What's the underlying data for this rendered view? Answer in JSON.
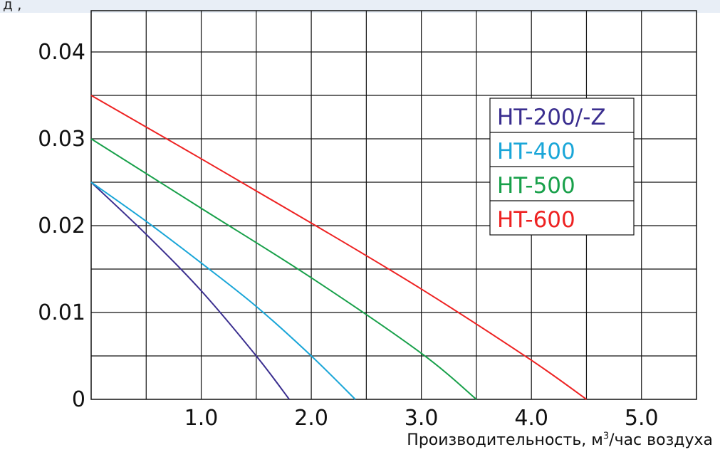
{
  "header": {
    "clipped_text": "д        , "
  },
  "chart_data": {
    "type": "line",
    "title": "",
    "xlabel_prefix": "Производительность, м",
    "xlabel_sup": "3",
    "xlabel_suffix": "/час воздуха",
    "ylabel": "",
    "xlim": [
      0,
      5.5
    ],
    "ylim": [
      0,
      0.04
    ],
    "x_tick_labels": [
      "1.0",
      "2.0",
      "3.0",
      "4.0",
      "5.0"
    ],
    "x_tick_values": [
      1.0,
      2.0,
      3.0,
      4.0,
      5.0
    ],
    "y_tick_labels": [
      "0",
      "0.01",
      "0.02",
      "0.03",
      "0.04"
    ],
    "y_tick_values": [
      0,
      0.01,
      0.02,
      0.03,
      0.04
    ],
    "grid": true,
    "legend_position": "right",
    "series": [
      {
        "name": "HT-200/-Z",
        "color": "#3a2e8f",
        "x": [
          0,
          0.5,
          1.0,
          1.5,
          1.8
        ],
        "y": [
          0.025,
          0.019,
          0.0125,
          0.005,
          0
        ]
      },
      {
        "name": "HT-400",
        "color": "#1aa6d8",
        "x": [
          0,
          0.5,
          1.0,
          1.5,
          2.0,
          2.4
        ],
        "y": [
          0.025,
          0.0205,
          0.0157,
          0.0107,
          0.005,
          0
        ]
      },
      {
        "name": "HT-500",
        "color": "#18a04a",
        "x": [
          0,
          1.0,
          2.0,
          3.0,
          3.5
        ],
        "y": [
          0.03,
          0.022,
          0.014,
          0.0053,
          0
        ]
      },
      {
        "name": "HT-600",
        "color": "#ee2222",
        "x": [
          0,
          1.0,
          2.0,
          3.0,
          4.0,
          4.5
        ],
        "y": [
          0.035,
          0.0277,
          0.0203,
          0.0127,
          0.0045,
          0
        ]
      }
    ]
  }
}
